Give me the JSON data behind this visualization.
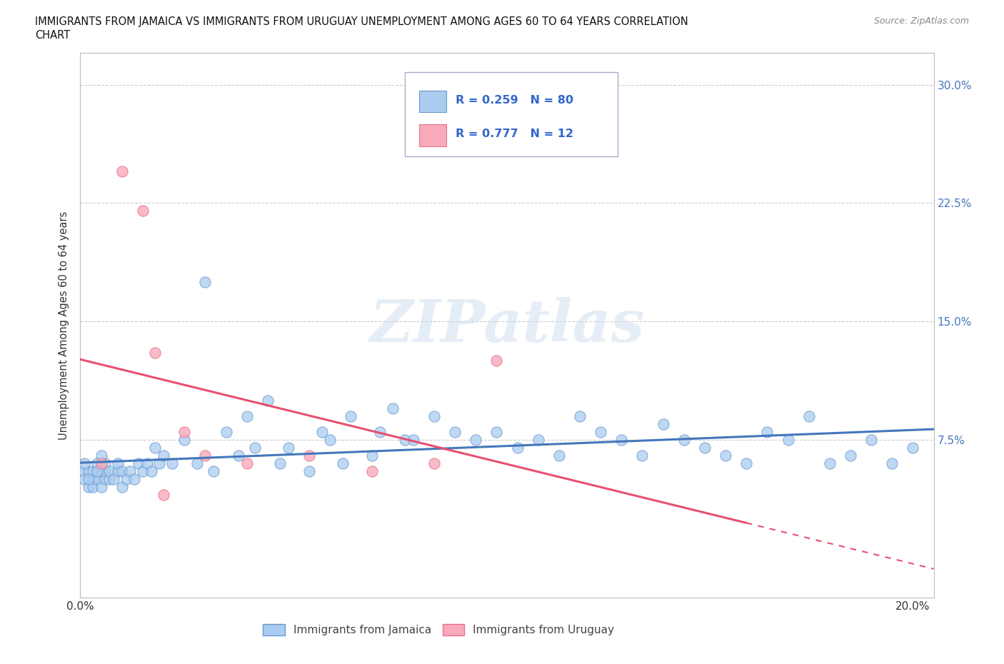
{
  "title_line1": "IMMIGRANTS FROM JAMAICA VS IMMIGRANTS FROM URUGUAY UNEMPLOYMENT AMONG AGES 60 TO 64 YEARS CORRELATION",
  "title_line2": "CHART",
  "source": "Source: ZipAtlas.com",
  "ylabel": "Unemployment Among Ages 60 to 64 years",
  "xlim": [
    0.0,
    0.205
  ],
  "ylim": [
    -0.025,
    0.32
  ],
  "x_tick_positions": [
    0.0,
    0.025,
    0.05,
    0.075,
    0.1,
    0.125,
    0.15,
    0.175,
    0.2
  ],
  "x_tick_labels": [
    "0.0%",
    "",
    "",
    "",
    "",
    "",
    "",
    "",
    "20.0%"
  ],
  "y_tick_positions": [
    0.0,
    0.075,
    0.15,
    0.225,
    0.3
  ],
  "y_tick_labels_right": [
    "",
    "7.5%",
    "15.0%",
    "22.5%",
    "30.0%"
  ],
  "jamaica_color": "#aaccf0",
  "jamaica_edge": "#6699cc",
  "uruguay_color": "#f8aabb",
  "uruguay_edge": "#e87090",
  "jamaica_line_color": "#4477bb",
  "uruguay_line_color": "#e85070",
  "legend_text_color": "#3366cc",
  "jamaica_R": 0.259,
  "jamaica_N": 80,
  "uruguay_R": 0.777,
  "uruguay_N": 12,
  "watermark": "ZIPatlas",
  "jamaica_scatter_x": [
    0.001,
    0.002,
    0.003,
    0.003,
    0.004,
    0.004,
    0.005,
    0.005,
    0.006,
    0.006,
    0.007,
    0.007,
    0.008,
    0.009,
    0.009,
    0.01,
    0.01,
    0.011,
    0.012,
    0.013,
    0.014,
    0.015,
    0.015,
    0.016,
    0.017,
    0.018,
    0.019,
    0.02,
    0.022,
    0.023,
    0.025,
    0.026,
    0.028,
    0.03,
    0.032,
    0.033,
    0.035,
    0.037,
    0.038,
    0.04,
    0.042,
    0.045,
    0.047,
    0.05,
    0.052,
    0.055,
    0.058,
    0.06,
    0.063,
    0.065,
    0.068,
    0.07,
    0.072,
    0.075,
    0.078,
    0.08,
    0.083,
    0.085,
    0.088,
    0.09,
    0.093,
    0.095,
    0.098,
    0.1,
    0.105,
    0.11,
    0.115,
    0.12,
    0.125,
    0.13,
    0.135,
    0.14,
    0.145,
    0.15,
    0.16,
    0.165,
    0.17,
    0.18,
    0.19,
    0.2
  ],
  "jamaica_scatter_y": [
    0.055,
    0.045,
    0.06,
    0.05,
    0.055,
    0.045,
    0.06,
    0.05,
    0.055,
    0.045,
    0.06,
    0.05,
    0.055,
    0.06,
    0.045,
    0.055,
    0.05,
    0.06,
    0.055,
    0.05,
    0.06,
    0.055,
    0.045,
    0.06,
    0.055,
    0.07,
    0.055,
    0.065,
    0.06,
    0.07,
    0.075,
    0.08,
    0.06,
    0.075,
    0.055,
    0.08,
    0.065,
    0.06,
    0.085,
    0.09,
    0.07,
    0.1,
    0.06,
    0.07,
    0.09,
    0.065,
    0.08,
    0.075,
    0.06,
    0.09,
    0.08,
    0.07,
    0.065,
    0.095,
    0.075,
    0.075,
    0.065,
    0.09,
    0.085,
    0.08,
    0.075,
    0.065,
    0.085,
    0.08,
    0.07,
    0.075,
    0.065,
    0.09,
    0.08,
    0.075,
    0.065,
    0.085,
    0.075,
    0.07,
    0.065,
    0.08,
    0.075,
    0.09,
    0.065,
    0.07
  ],
  "uruguay_scatter_x": [
    0.005,
    0.01,
    0.015,
    0.02,
    0.025,
    0.03,
    0.035,
    0.04,
    0.055,
    0.07,
    0.085,
    0.1
  ],
  "uruguay_scatter_y": [
    0.06,
    0.25,
    0.225,
    0.07,
    0.08,
    0.065,
    0.06,
    0.07,
    0.065,
    0.065,
    0.06,
    0.13
  ]
}
